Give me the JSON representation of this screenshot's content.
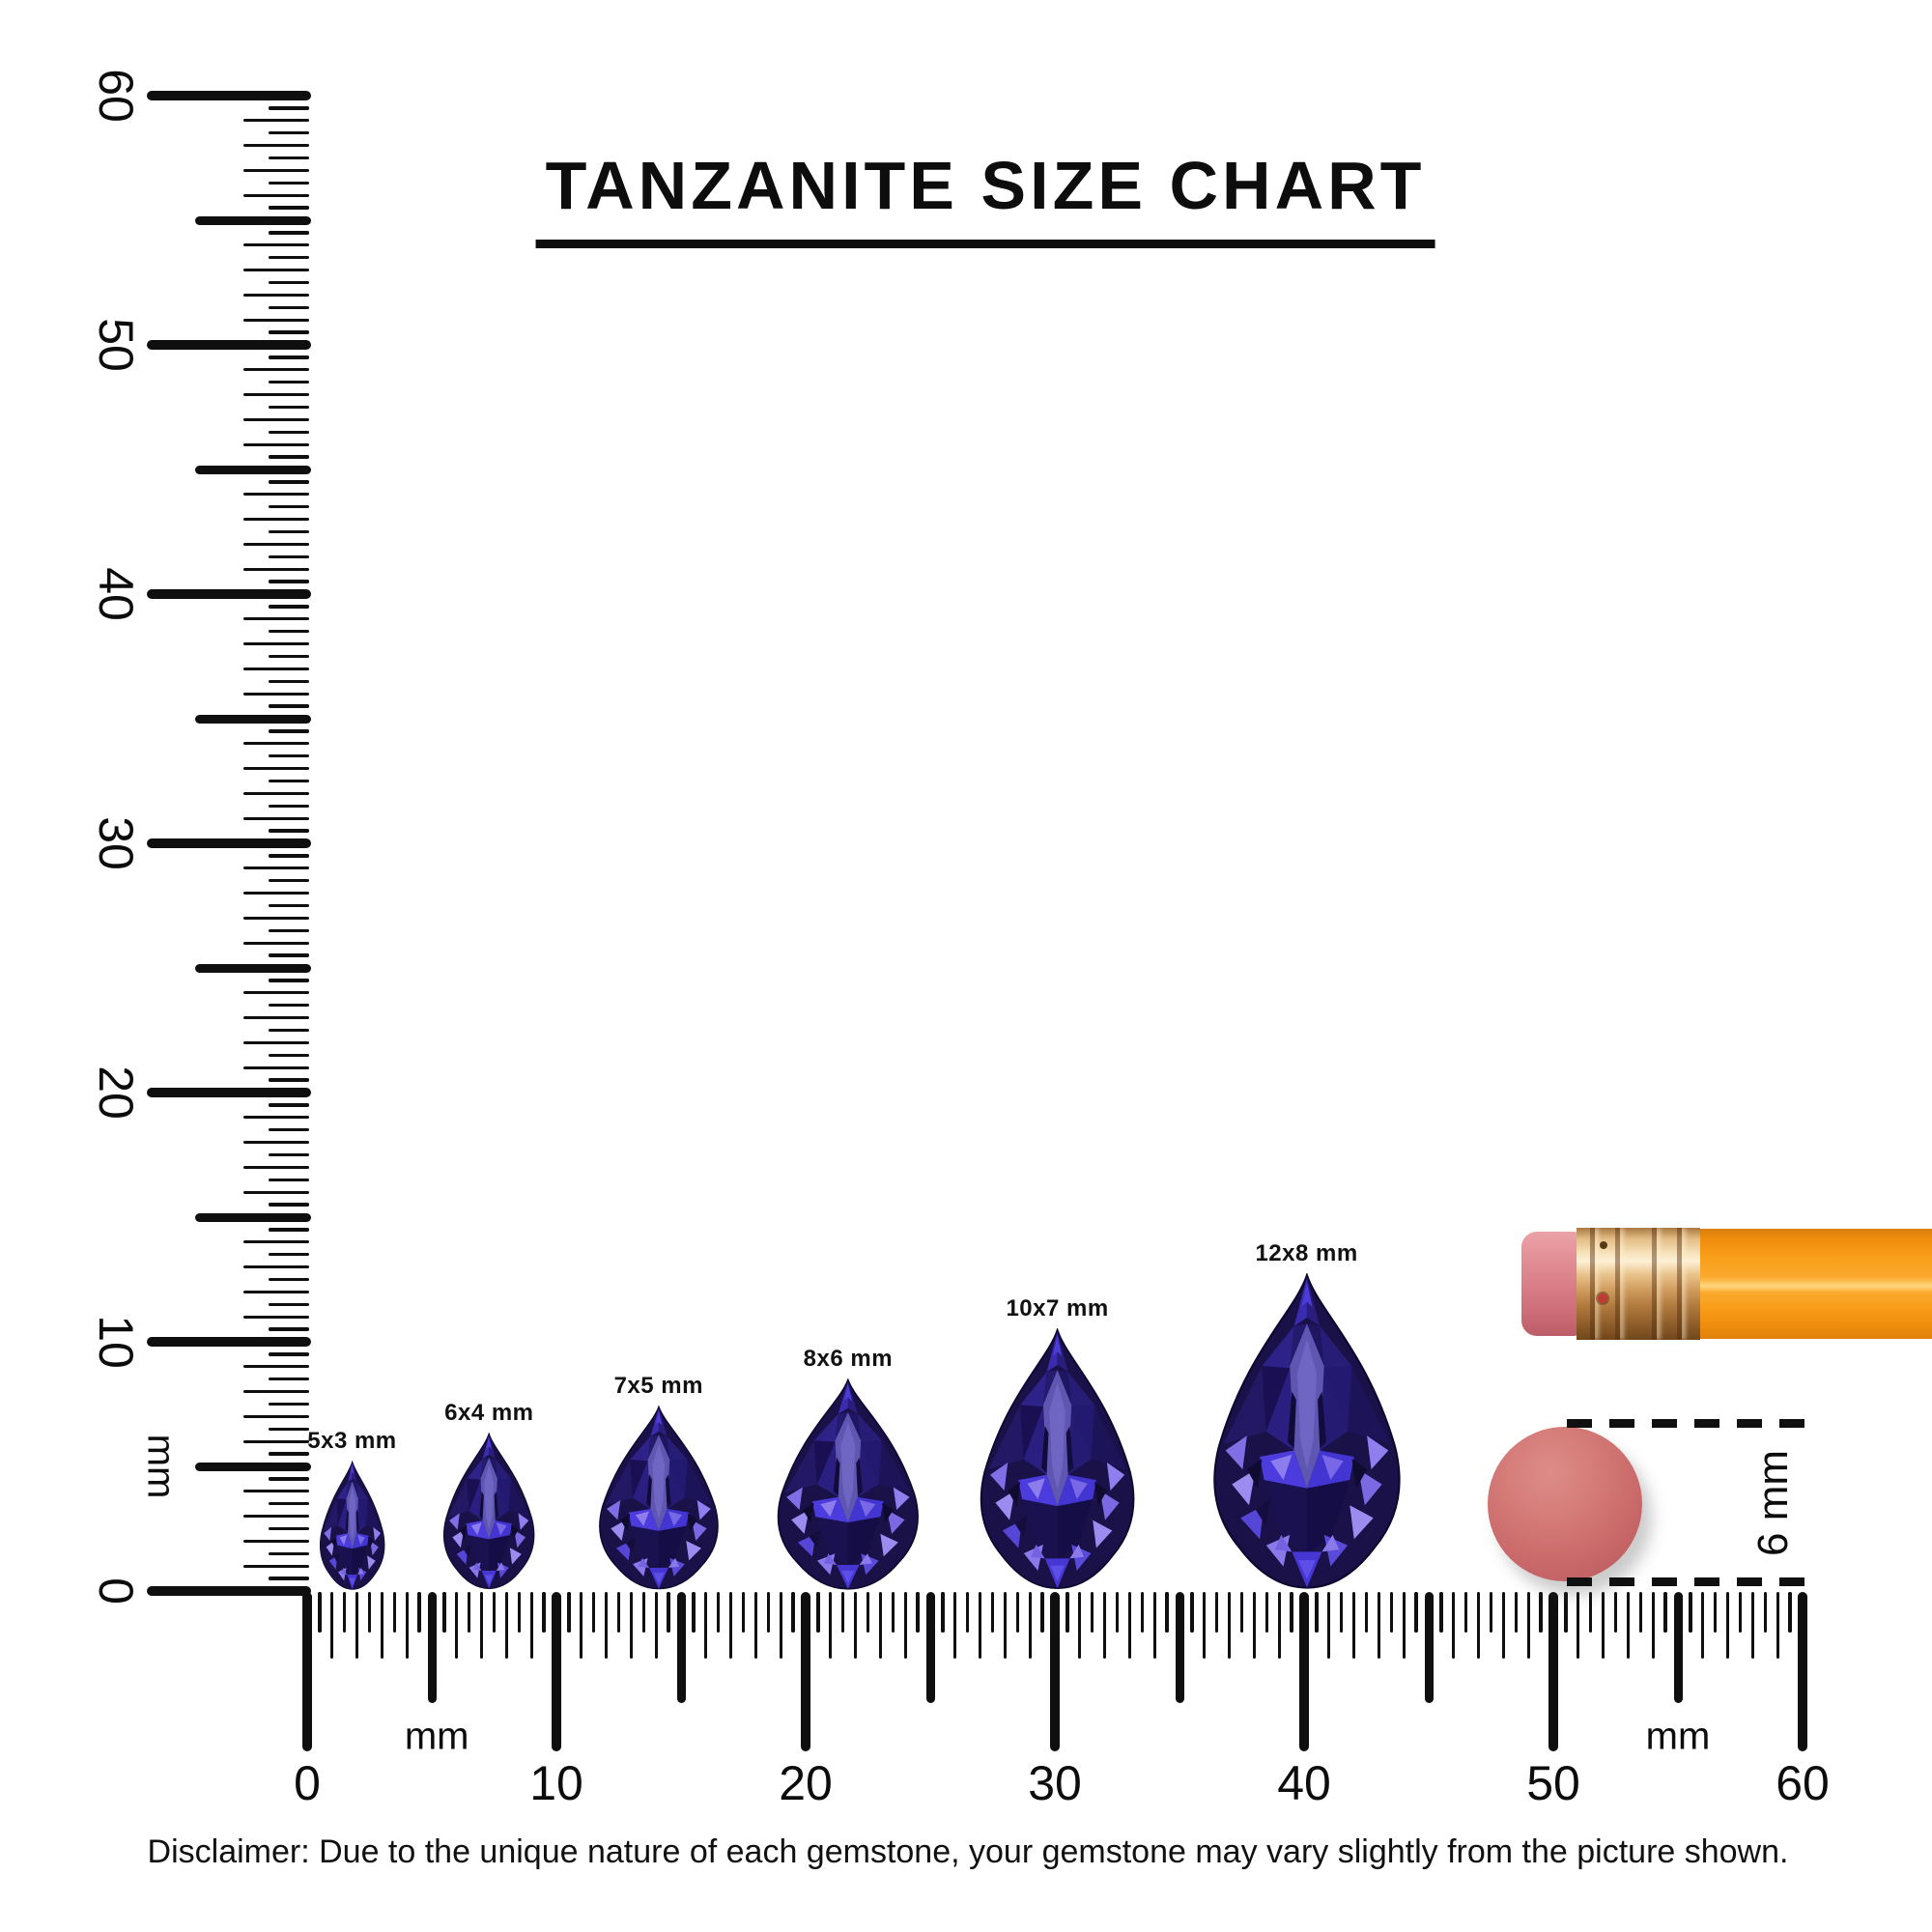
{
  "title": "TANZANITE SIZE CHART",
  "disclaimer": "Disclaimer: Due to the unique nature of each gemstone, your gemstone may vary slightly from the picture shown.",
  "rulers": {
    "unit": "mm",
    "vertical": {
      "tick_labels": [
        "60",
        "50",
        "40",
        "30",
        "20",
        "10",
        "0"
      ]
    },
    "horizontal": {
      "tick_labels": [
        "0",
        "10",
        "20",
        "30",
        "40",
        "50",
        "60"
      ]
    }
  },
  "gems": [
    {
      "label": "5x3 mm",
      "width_mm": 3.0,
      "height_mm": 5.2,
      "center_mm": 1.8
    },
    {
      "label": "6x4 mm",
      "width_mm": 4.2,
      "height_mm": 6.3,
      "center_mm": 7.3
    },
    {
      "label": "7x5 mm",
      "width_mm": 5.5,
      "height_mm": 7.4,
      "center_mm": 14.1
    },
    {
      "label": "8x6 mm",
      "width_mm": 6.5,
      "height_mm": 8.5,
      "center_mm": 21.7
    },
    {
      "label": "10x7 mm",
      "width_mm": 7.1,
      "height_mm": 10.5,
      "center_mm": 30.1
    },
    {
      "label": "12x8 mm",
      "width_mm": 8.6,
      "height_mm": 12.7,
      "center_mm": 40.1
    }
  ],
  "eraser_dimension": "6 mm",
  "colors": {
    "ink": "#0d0d0d",
    "gem_dark": "#1a1148",
    "gem_primary": "#3d31d6",
    "gem_light": "#8d7cec",
    "pencil_body": "#f89d18",
    "pencil_ferrule": "#d9a964",
    "pencil_eraser": "#d87c85",
    "round_eraser": "#cc6c6c"
  }
}
